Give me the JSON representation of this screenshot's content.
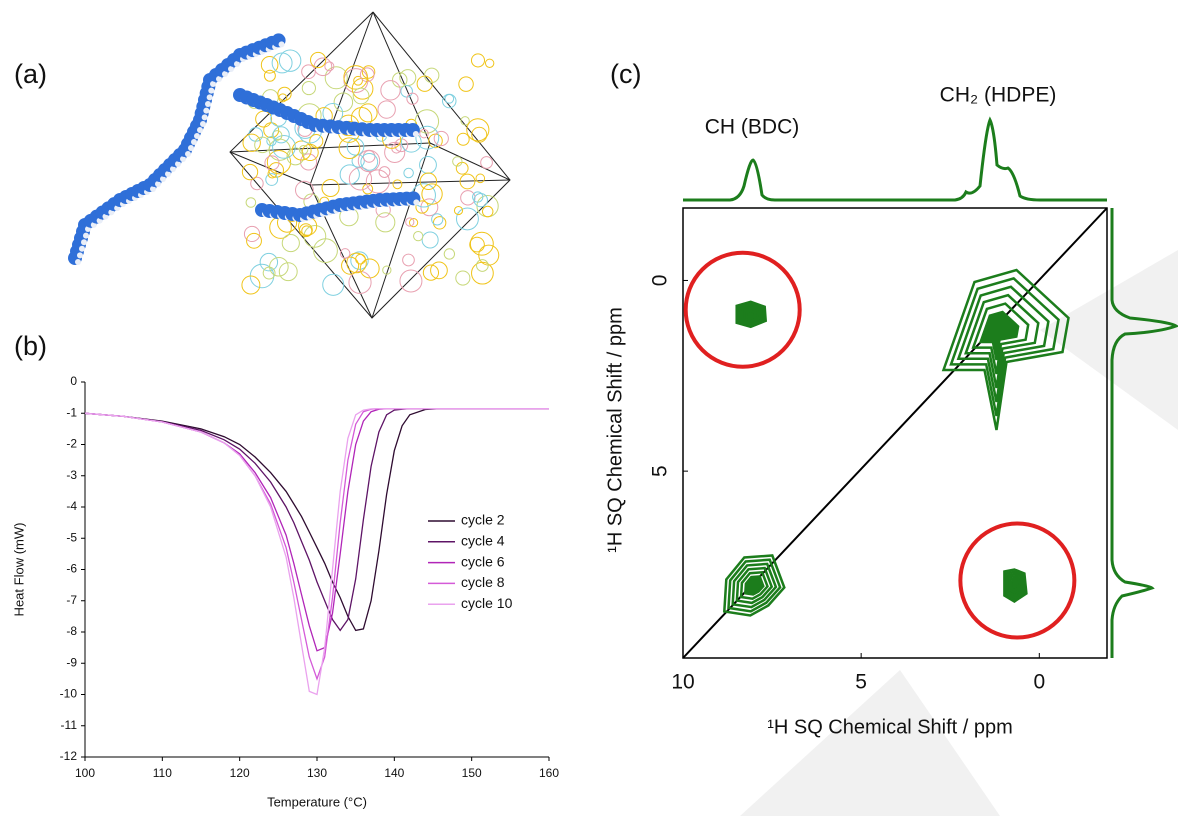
{
  "panel_labels": [
    "(a)",
    "(b)",
    "(c)"
  ],
  "chart_data": [
    {
      "type": "line",
      "xlabel": "Temperature (°C)",
      "ylabel": "Heat Flow (mW)",
      "x": [
        100,
        105,
        110,
        115,
        118,
        120,
        122,
        124,
        126,
        127,
        128,
        129,
        130,
        131,
        132,
        133,
        134,
        135,
        136,
        137,
        138,
        139,
        140,
        141,
        142,
        144,
        146,
        150,
        155,
        160
      ],
      "xlim": [
        100,
        160
      ],
      "xticks": [
        100,
        110,
        120,
        130,
        140,
        150,
        160
      ],
      "ylim": [
        -12,
        0
      ],
      "yticks": [
        0,
        -1,
        -2,
        -3,
        -4,
        -5,
        -6,
        -7,
        -8,
        -9,
        -10,
        -11,
        -12
      ],
      "series": [
        {
          "name": "cycle 2",
          "color": "#2e0b30",
          "values": [
            -1.0,
            -1.1,
            -1.25,
            -1.5,
            -1.75,
            -2.0,
            -2.4,
            -2.9,
            -3.5,
            -3.9,
            -4.3,
            -4.8,
            -5.3,
            -5.8,
            -6.4,
            -6.9,
            -7.5,
            -7.95,
            -7.9,
            -7.0,
            -5.4,
            -3.6,
            -2.2,
            -1.4,
            -1.05,
            -0.88,
            -0.85,
            -0.85,
            -0.85,
            -0.85
          ]
        },
        {
          "name": "cycle 4",
          "color": "#5e1466",
          "values": [
            -1.0,
            -1.1,
            -1.27,
            -1.55,
            -1.85,
            -2.15,
            -2.6,
            -3.2,
            -4.0,
            -4.5,
            -5.1,
            -5.7,
            -6.4,
            -7.0,
            -7.6,
            -7.95,
            -7.6,
            -6.3,
            -4.4,
            -2.7,
            -1.6,
            -1.05,
            -0.9,
            -0.87,
            -0.85,
            -0.85,
            -0.85,
            -0.85,
            -0.85,
            -0.85
          ]
        },
        {
          "name": "cycle 6",
          "color": "#b125b8",
          "values": [
            -1.0,
            -1.1,
            -1.28,
            -1.6,
            -1.95,
            -2.3,
            -2.9,
            -3.7,
            -4.9,
            -5.8,
            -6.8,
            -7.8,
            -8.6,
            -8.5,
            -7.4,
            -5.5,
            -3.5,
            -2.0,
            -1.25,
            -0.95,
            -0.87,
            -0.85,
            -0.85,
            -0.85,
            -0.85,
            -0.85,
            -0.85,
            -0.85,
            -0.85,
            -0.85
          ]
        },
        {
          "name": "cycle 8",
          "color": "#d45ad8",
          "values": [
            -1.0,
            -1.1,
            -1.28,
            -1.6,
            -1.95,
            -2.35,
            -3.0,
            -3.9,
            -5.3,
            -6.4,
            -7.6,
            -8.8,
            -9.5,
            -8.8,
            -6.9,
            -4.5,
            -2.5,
            -1.35,
            -0.95,
            -0.87,
            -0.85,
            -0.85,
            -0.85,
            -0.85,
            -0.85,
            -0.85,
            -0.85,
            -0.85,
            -0.85,
            -0.85
          ]
        },
        {
          "name": "cycle 10",
          "color": "#eaa2ee",
          "values": [
            -1.0,
            -1.1,
            -1.28,
            -1.6,
            -1.95,
            -2.35,
            -3.0,
            -4.0,
            -5.6,
            -6.9,
            -8.4,
            -9.9,
            -10.0,
            -8.5,
            -6.0,
            -3.5,
            -1.8,
            -1.05,
            -0.9,
            -0.86,
            -0.85,
            -0.85,
            -0.85,
            -0.85,
            -0.85,
            -0.85,
            -0.85,
            -0.85,
            -0.85,
            -0.85
          ]
        }
      ]
    },
    {
      "type": "contour",
      "annotations": [
        "CH (BDC)",
        "CH₂ (HDPE)"
      ],
      "xlabel": "¹H SQ Chemical Shift / ppm",
      "ylabel": "¹H SQ Chemical Shift / ppm",
      "xlim": [
        10,
        -1.9
      ],
      "xticks": [
        10,
        5,
        0
      ],
      "ylim": [
        -1.9,
        9.9
      ],
      "yticks": [
        0,
        5
      ],
      "color": "#1c7d1c",
      "highlight_color": "#e02020",
      "x": [
        8.1,
        1.2,
        8.0,
        0.7
      ],
      "values": [
        0.9,
        1.3,
        8.0,
        8.0
      ]
    }
  ]
}
